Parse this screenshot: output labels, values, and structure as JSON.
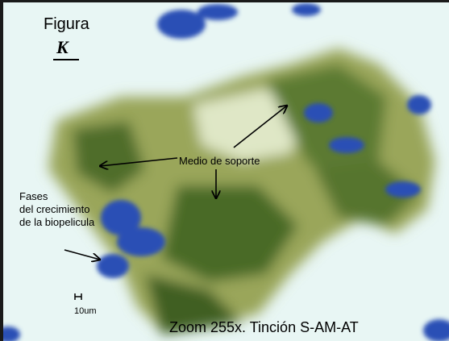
{
  "figure": {
    "label": "Figura",
    "letter": "K"
  },
  "annotations": {
    "support": "Medio de soporte",
    "phases": [
      "Fases",
      "del crecimiento",
      "de la biopelicula"
    ]
  },
  "scale_bar": "10um",
  "caption": "Zoom 255x. Tinción S-AM-AT"
}
